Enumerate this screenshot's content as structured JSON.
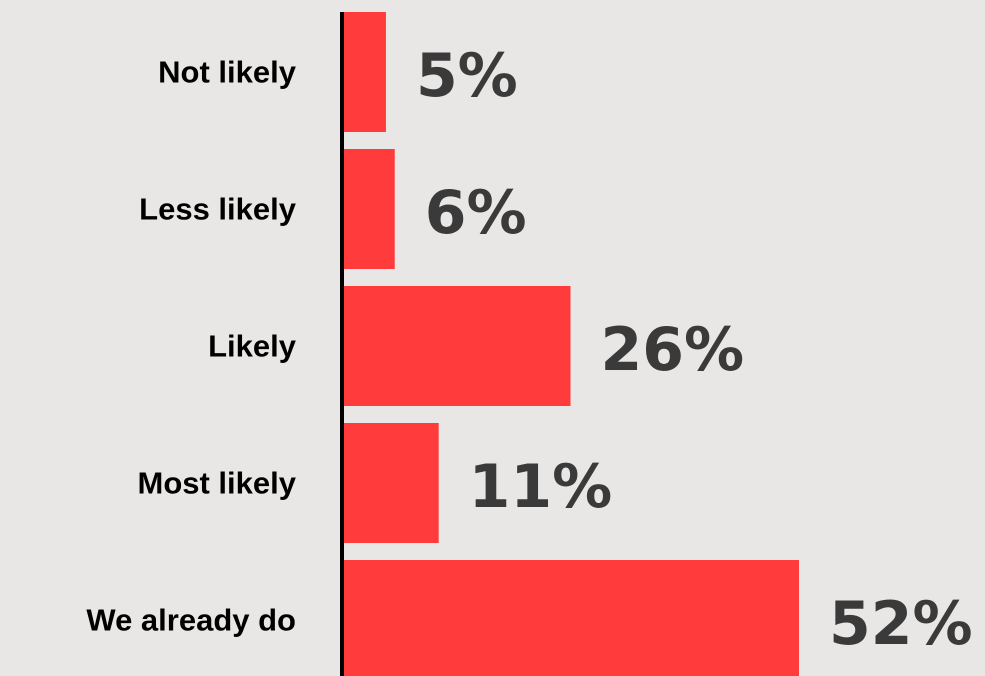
{
  "chart_data": {
    "type": "bar",
    "orientation": "horizontal",
    "categories": [
      "Not likely",
      "Less likely",
      "Likely",
      "Most likely",
      "We already do"
    ],
    "values": [
      5,
      6,
      26,
      11,
      52
    ],
    "value_labels": [
      "5%",
      "6%",
      "26%",
      "11%",
      "52%"
    ],
    "title": "",
    "xlabel": "",
    "ylabel": "",
    "xlim": [
      0,
      52
    ],
    "grid": false,
    "legend": "none",
    "bar_color": "#ff3b3b",
    "axis_color": "#000000",
    "value_label_color": "#3a3a3a",
    "background": "#e9e7e5"
  }
}
